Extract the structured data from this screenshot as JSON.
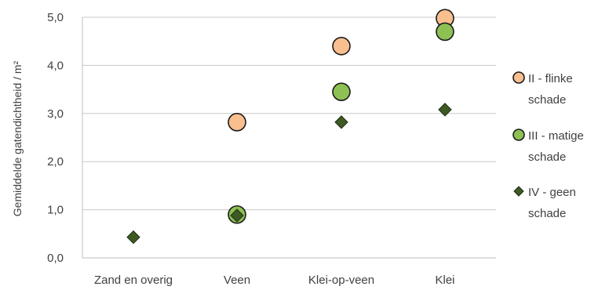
{
  "chart_data": {
    "type": "scatter",
    "categories": [
      "Zand en overig",
      "Veen",
      "Klei-op-veen",
      "Klei"
    ],
    "ylabel": "Gemiddelde gatendichtheid / m²",
    "ylim": [
      0,
      5
    ],
    "yticks": [
      "0,0",
      "1,0",
      "2,0",
      "3,0",
      "4,0",
      "5,0"
    ],
    "grid": true,
    "legend_position": "right",
    "series": [
      {
        "name": "II - flinke schade",
        "name_lines": [
          "II - flinke",
          "schade"
        ],
        "marker": "circle",
        "color": "#F9BF8F",
        "values": [
          null,
          2.82,
          4.4,
          4.98
        ]
      },
      {
        "name": "III - matige schade",
        "name_lines": [
          "III - matige",
          "schade"
        ],
        "marker": "circle",
        "color": "#8DC153",
        "values": [
          null,
          0.9,
          3.45,
          4.7
        ]
      },
      {
        "name": "IV - geen schade",
        "name_lines": [
          "IV - geen",
          "schade"
        ],
        "marker": "diamond",
        "color": "#3E5A24",
        "values": [
          0.43,
          0.88,
          2.82,
          3.08
        ]
      }
    ]
  }
}
